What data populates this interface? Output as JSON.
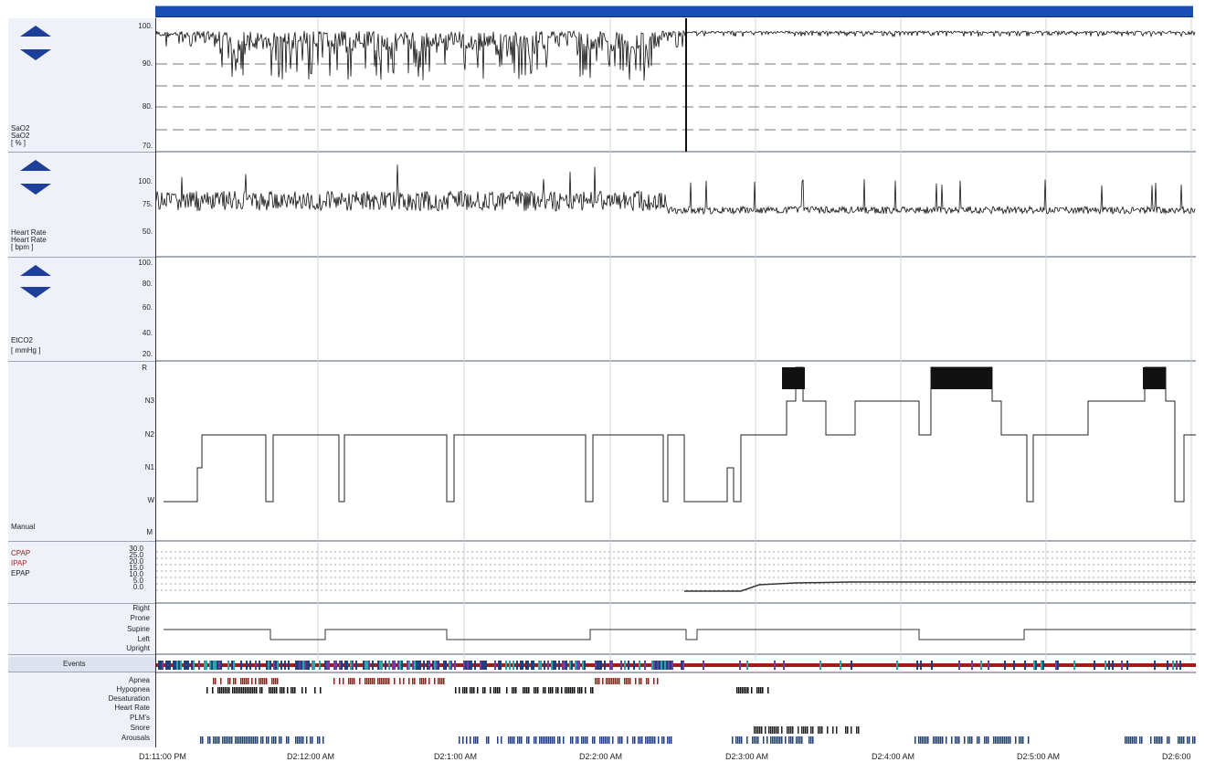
{
  "panels": {
    "sao2": {
      "label_lines": [
        "SaO2",
        "SaO2",
        "[ % ]"
      ],
      "ticks": [
        "100.",
        "90.",
        "80.",
        "70."
      ]
    },
    "hr": {
      "label_lines": [
        "Heart Rate",
        "Heart Rate",
        "[ bpm ]"
      ],
      "ticks": [
        "100.",
        "75.",
        "50."
      ]
    },
    "etco2": {
      "label_lines": [
        "EtCO2",
        "[ mmHg ]"
      ],
      "ticks": [
        "100.",
        "80.",
        "60.",
        "40.",
        "20."
      ]
    },
    "hypnogram": {
      "label": "Manual",
      "stages": [
        "R",
        "N3",
        "N2",
        "N1",
        "W",
        "M"
      ]
    },
    "pap": {
      "labels": [
        "CPAP",
        "IPAP",
        "EPAP"
      ],
      "colors": [
        "#8a2020",
        "#c02020",
        "#202020"
      ],
      "ticks": [
        "30.0",
        "25.0",
        "20.0",
        "15.0",
        "10.0",
        "5.0",
        "0.0"
      ]
    },
    "position": {
      "labels": [
        "Right",
        "Prone",
        "Supine",
        "Left",
        "Upright"
      ]
    },
    "events": {
      "label": "Events"
    },
    "event_rows": [
      "Apnea",
      "Hypopnea",
      "Desaturation",
      "Heart Rate",
      "PLM's",
      "Snore",
      "Arousals"
    ]
  },
  "time_axis": [
    "D1:11:00 PM",
    "D2:12:00 AM",
    "D2:1:00 AM",
    "D2:2:00 AM",
    "D2:3:00 AM",
    "D2:4:00 AM",
    "D2:5:00 AM",
    "D2:6:00"
  ],
  "colors": {
    "scrollbar": "#1a4db5",
    "arrow": "#1d3f9a",
    "arousal": "#1f3f80",
    "apnea": "#a01818",
    "events_bar": "#a41a1a"
  }
}
